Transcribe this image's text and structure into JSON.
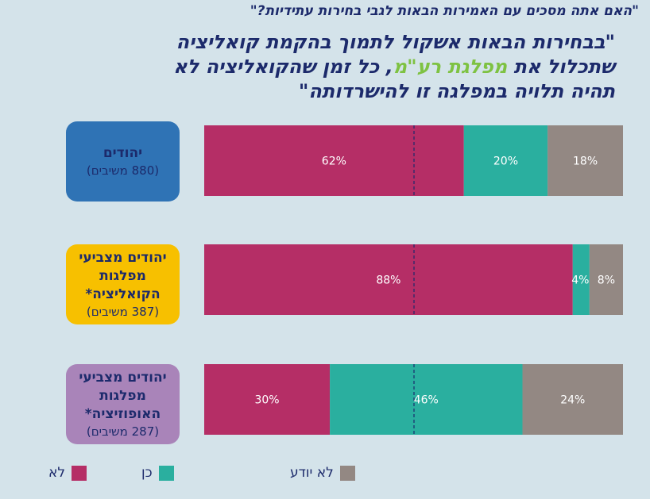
{
  "question": "\"האם אתה מסכים עם האמירות הבאות לגבי בחירות עתידיות?\"",
  "statement": {
    "line1": "\"בבחירות הבאות אשקול לתמוך בהקמת קואליציה",
    "line2_before": "שתכלול את ",
    "line2_highlight": "מפלגת רע\"מ",
    "line2_after": ", כל זמן שהקואליציה לא",
    "line3": "תהיה תלויה במפלגה זו להישרדותה\""
  },
  "groups": [
    {
      "title_lines": [
        "יהודים"
      ],
      "n": "(880 משיבים)",
      "color": "#2f73b5",
      "title_color": "#1c2a6b"
    },
    {
      "title_lines": [
        "יהודים מצביעי",
        "מפלגות",
        "הקואליציה*"
      ],
      "n": "(387 משיבים)",
      "color": "#f7c000",
      "title_color": "#1c2a6b"
    },
    {
      "title_lines": [
        "יהודים מצביעי",
        "מפלגות",
        "האופוזיציה*"
      ],
      "n": "(287 משיבים)",
      "color": "#a984b9",
      "title_color": "#1c2a6b"
    }
  ],
  "chart_data": {
    "type": "bar",
    "orientation": "horizontal",
    "stacked": true,
    "unit": "%",
    "categories": [
      "יהודים",
      "יהודים מצביעי מפלגות הקואליציה*",
      "יהודים מצביעי מפלגות האופוזיציה*"
    ],
    "series": [
      {
        "name": "לא",
        "color": "#b52e66",
        "values": [
          62,
          88,
          30
        ],
        "labels": [
          "62%",
          "88%",
          "30%"
        ]
      },
      {
        "name": "כן",
        "color": "#2aaf9f",
        "values": [
          20,
          4,
          46
        ],
        "labels": [
          "20%",
          "4%",
          "46%"
        ]
      },
      {
        "name": "לא יודע",
        "color": "#938883",
        "values": [
          18,
          8,
          24
        ],
        "labels": [
          "18%",
          "8%",
          "24%"
        ]
      }
    ],
    "xlim": [
      0,
      100
    ],
    "reference_line": 50,
    "legend_position": "bottom"
  },
  "legend": [
    {
      "label": "לא",
      "color": "#b52e66"
    },
    {
      "label": "כן",
      "color": "#2aaf9f"
    },
    {
      "label": "לא יודע",
      "color": "#938883"
    }
  ]
}
